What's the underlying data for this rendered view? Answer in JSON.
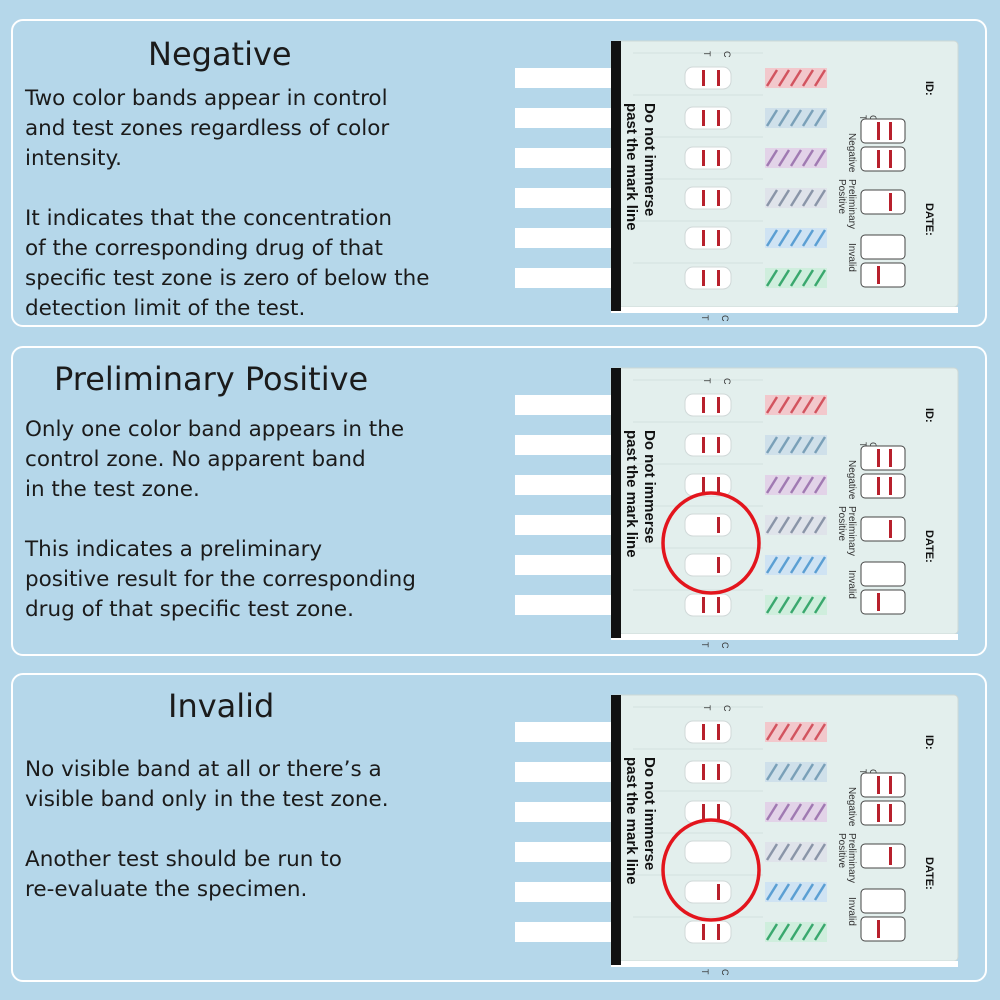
{
  "colors": {
    "background": "#b5d7ea",
    "panel_border": "#ffffff",
    "band_red": "#b8202c",
    "circle_red": "#e3151d"
  },
  "card": {
    "warning_line1": "Do not immerse",
    "warning_line2": "past the mark line",
    "label_c": "C",
    "label_t": "T",
    "id_label": "ID:",
    "date_label": "DATE:",
    "legend_negative": "Negative",
    "legend_preliminary_1": "Preliminary",
    "legend_preliminary_2": "Positive",
    "legend_invalid": "Invalid"
  },
  "panels": [
    {
      "title": "Negative",
      "lines": [
        "Two color bands appear in control",
        "and test zones regardless of color",
        "intensity.",
        "",
        "It indicates that the concentration",
        "of the corresponding drug of that",
        "specific test zone is zero of below the",
        "detection limit of the test."
      ]
    },
    {
      "title": "Preliminary Positive",
      "lines": [
        "Only one color band appears in the",
        "control zone. No apparent band",
        "in the test zone.",
        "",
        "This indicates a preliminary",
        "positive result for the corresponding",
        "drug of that specific test zone."
      ]
    },
    {
      "title": "Invalid",
      "lines": [
        "No visible band at all or there’s a",
        "visible band only in the test zone.",
        "",
        "Another test should be run to",
        "re-evaluate the specimen."
      ]
    }
  ]
}
